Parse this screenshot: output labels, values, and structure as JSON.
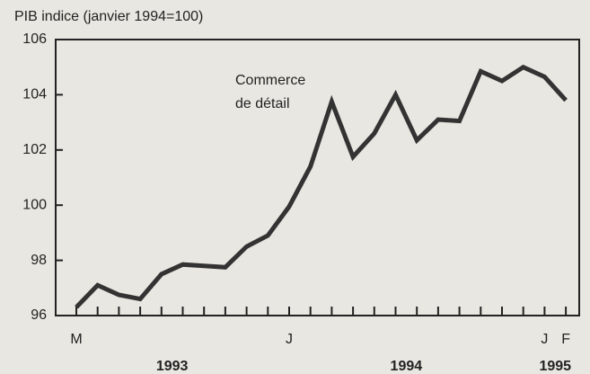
{
  "chart_data": {
    "type": "line",
    "ylabel": "PIB indice (janvier 1994=100)",
    "annotation": [
      "Commerce",
      "de détail"
    ],
    "categories": [
      "M",
      null,
      null,
      null,
      null,
      null,
      null,
      null,
      null,
      null,
      "J",
      null,
      null,
      null,
      null,
      null,
      null,
      null,
      null,
      null,
      null,
      null,
      "J",
      "F"
    ],
    "years": [
      "1993",
      "1994",
      "1995"
    ],
    "series": [
      {
        "name": "Commerce de détail",
        "color": "#333333",
        "values": [
          96.3,
          97.1,
          96.75,
          96.6,
          97.5,
          97.85,
          97.8,
          97.75,
          98.5,
          98.9,
          99.95,
          101.4,
          103.75,
          101.75,
          102.6,
          104.0,
          102.35,
          103.1,
          103.05,
          104.85,
          104.5,
          105.0,
          104.65,
          103.8
        ]
      }
    ],
    "ylim": [
      96,
      106
    ],
    "yticks": [
      96,
      98,
      100,
      102,
      104,
      106
    ],
    "grid": false
  }
}
